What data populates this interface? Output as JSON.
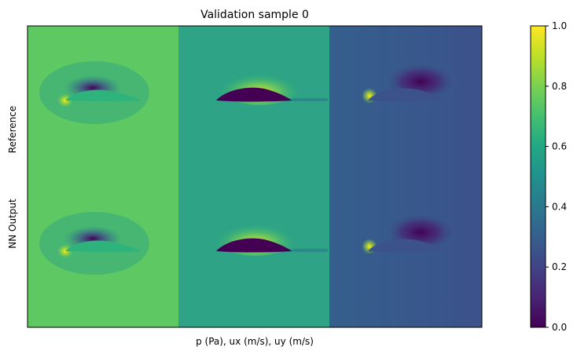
{
  "chart_data": [
    {
      "type": "heatmap",
      "title": "Validation sample 0",
      "xlabel": "p (Pa), ux (m/s), uy (m/s)",
      "row_labels": [
        "Reference",
        "NN Output"
      ],
      "column_fields": [
        "p",
        "ux",
        "uy"
      ],
      "panels": [
        {
          "row": "Reference",
          "field": "p",
          "background": 0.72,
          "min": "suction above leading edge",
          "max": "stagnation at leading edge"
        },
        {
          "row": "Reference",
          "field": "ux",
          "background": 0.57,
          "min": "inside airfoil",
          "max": "above airfoil"
        },
        {
          "row": "Reference",
          "field": "uy",
          "background": 0.3,
          "min": "above trailing side",
          "max": "at leading edge"
        },
        {
          "row": "NN Output",
          "field": "p",
          "background": 0.72,
          "min": "suction above leading edge",
          "max": "stagnation at leading edge"
        },
        {
          "row": "NN Output",
          "field": "ux",
          "background": 0.57,
          "min": "inside airfoil",
          "max": "above airfoil"
        },
        {
          "row": "NN Output",
          "field": "uy",
          "background": 0.3,
          "min": "above trailing side",
          "max": "at leading edge"
        }
      ],
      "grid": false,
      "axis_ticks": false
    },
    {
      "type": "colorbar",
      "colormap": "viridis",
      "range": [
        0.0,
        1.0
      ],
      "ticks": [
        "0.0",
        "0.2",
        "0.4",
        "0.6",
        "0.8",
        "1.0"
      ]
    }
  ]
}
